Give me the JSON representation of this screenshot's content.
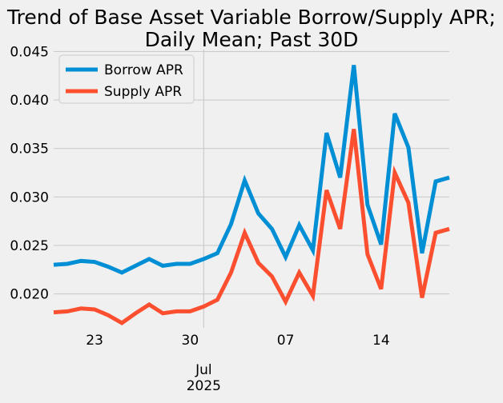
{
  "chart_data": {
    "type": "line",
    "title": "Trend of Base Asset Variable Borrow/Supply APR; Daily Mean; Past 30D",
    "title_lines": [
      "Trend of Base Asset Variable Borrow/Supply APR;",
      "Daily Mean; Past 30D"
    ],
    "xlabel": "",
    "ylabel": "",
    "x": [
      "2025-06-20",
      "2025-06-21",
      "2025-06-22",
      "2025-06-23",
      "2025-06-24",
      "2025-06-25",
      "2025-06-26",
      "2025-06-27",
      "2025-06-28",
      "2025-06-29",
      "2025-06-30",
      "2025-07-01",
      "2025-07-02",
      "2025-07-03",
      "2025-07-04",
      "2025-07-05",
      "2025-07-06",
      "2025-07-07",
      "2025-07-08",
      "2025-07-09",
      "2025-07-10",
      "2025-07-11",
      "2025-07-12",
      "2025-07-13",
      "2025-07-14",
      "2025-07-15",
      "2025-07-16",
      "2025-07-17",
      "2025-07-18",
      "2025-07-19"
    ],
    "series": [
      {
        "name": "Borrow APR",
        "color": "#008fd5",
        "values": [
          0.023,
          0.0231,
          0.0234,
          0.0233,
          0.0228,
          0.0222,
          0.0229,
          0.0236,
          0.0229,
          0.0231,
          0.0231,
          0.0236,
          0.0242,
          0.0272,
          0.0317,
          0.0283,
          0.0267,
          0.0238,
          0.0271,
          0.0245,
          0.0366,
          0.032,
          0.0436,
          0.0292,
          0.0251,
          0.0386,
          0.0351,
          0.0242,
          0.0316,
          0.032
        ]
      },
      {
        "name": "Supply APR",
        "color": "#fc4f30",
        "values": [
          0.0181,
          0.0182,
          0.0185,
          0.0184,
          0.0178,
          0.017,
          0.018,
          0.0189,
          0.018,
          0.0182,
          0.0182,
          0.0187,
          0.0194,
          0.0222,
          0.0263,
          0.0232,
          0.0218,
          0.0192,
          0.0222,
          0.0198,
          0.0307,
          0.0267,
          0.037,
          0.0241,
          0.0205,
          0.0325,
          0.0294,
          0.0196,
          0.0263,
          0.0267
        ]
      }
    ],
    "ylim": [
      0.0165,
      0.0452
    ],
    "yticks": [
      0.02,
      0.025,
      0.03,
      0.035,
      0.04,
      0.045
    ],
    "ytick_labels": [
      "0.020",
      "0.025",
      "0.030",
      "0.035",
      "0.040",
      "0.045"
    ],
    "xticks": [
      {
        "date": "2025-06-23",
        "label": "23"
      },
      {
        "date": "2025-06-30",
        "label": "30"
      },
      {
        "date": "2025-07-07",
        "label": "07"
      },
      {
        "date": "2025-07-14",
        "label": "14"
      }
    ],
    "month_marker": {
      "date": "2025-07-01",
      "label_month": "Jul",
      "label_year": "2025"
    },
    "grid": true,
    "legend_placement": "top-left"
  }
}
